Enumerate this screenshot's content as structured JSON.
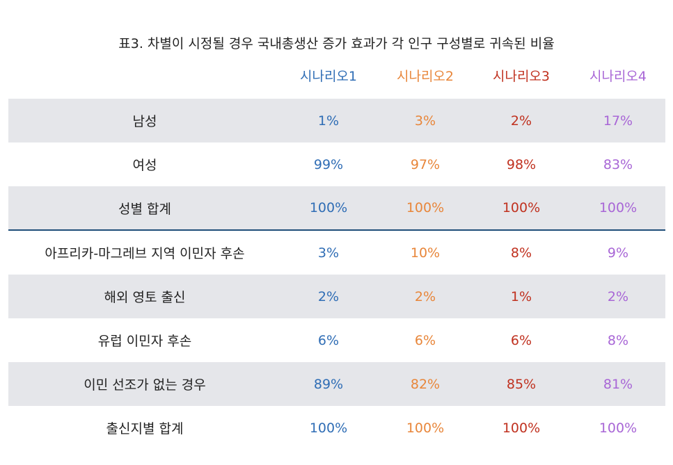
{
  "title": "표3. 차별이 시정될 경우 국내총생산 증가 효과가 각 인구 구성별로 귀속된 비율",
  "colors": {
    "scenario1": "#2f6db5",
    "scenario2": "#e8863a",
    "scenario3": "#c0311f",
    "scenario4": "#a866d6",
    "shade": "#e5e6ea",
    "divider": "#1f4e79"
  },
  "headers": [
    "시나리오1",
    "시나리오2",
    "시나리오3",
    "시나리오4"
  ],
  "rows": [
    {
      "label": "남성",
      "values": [
        "1%",
        "3%",
        "2%",
        "17%"
      ]
    },
    {
      "label": "여성",
      "values": [
        "99%",
        "97%",
        "98%",
        "83%"
      ]
    },
    {
      "label": "성별 합계",
      "values": [
        "100%",
        "100%",
        "100%",
        "100%"
      ]
    },
    {
      "label": "아프리카-마그레브 지역 이민자 후손",
      "values": [
        "3%",
        "10%",
        "8%",
        "9%"
      ]
    },
    {
      "label": "해외 영토 출신",
      "values": [
        "2%",
        "2%",
        "1%",
        "2%"
      ]
    },
    {
      "label": "유럽 이민자 후손",
      "values": [
        "6%",
        "6%",
        "6%",
        "8%"
      ]
    },
    {
      "label": "이민 선조가 없는 경우",
      "values": [
        "89%",
        "82%",
        "85%",
        "81%"
      ]
    },
    {
      "label": "출신지별 합계",
      "values": [
        "100%",
        "100%",
        "100%",
        "100%"
      ]
    }
  ]
}
